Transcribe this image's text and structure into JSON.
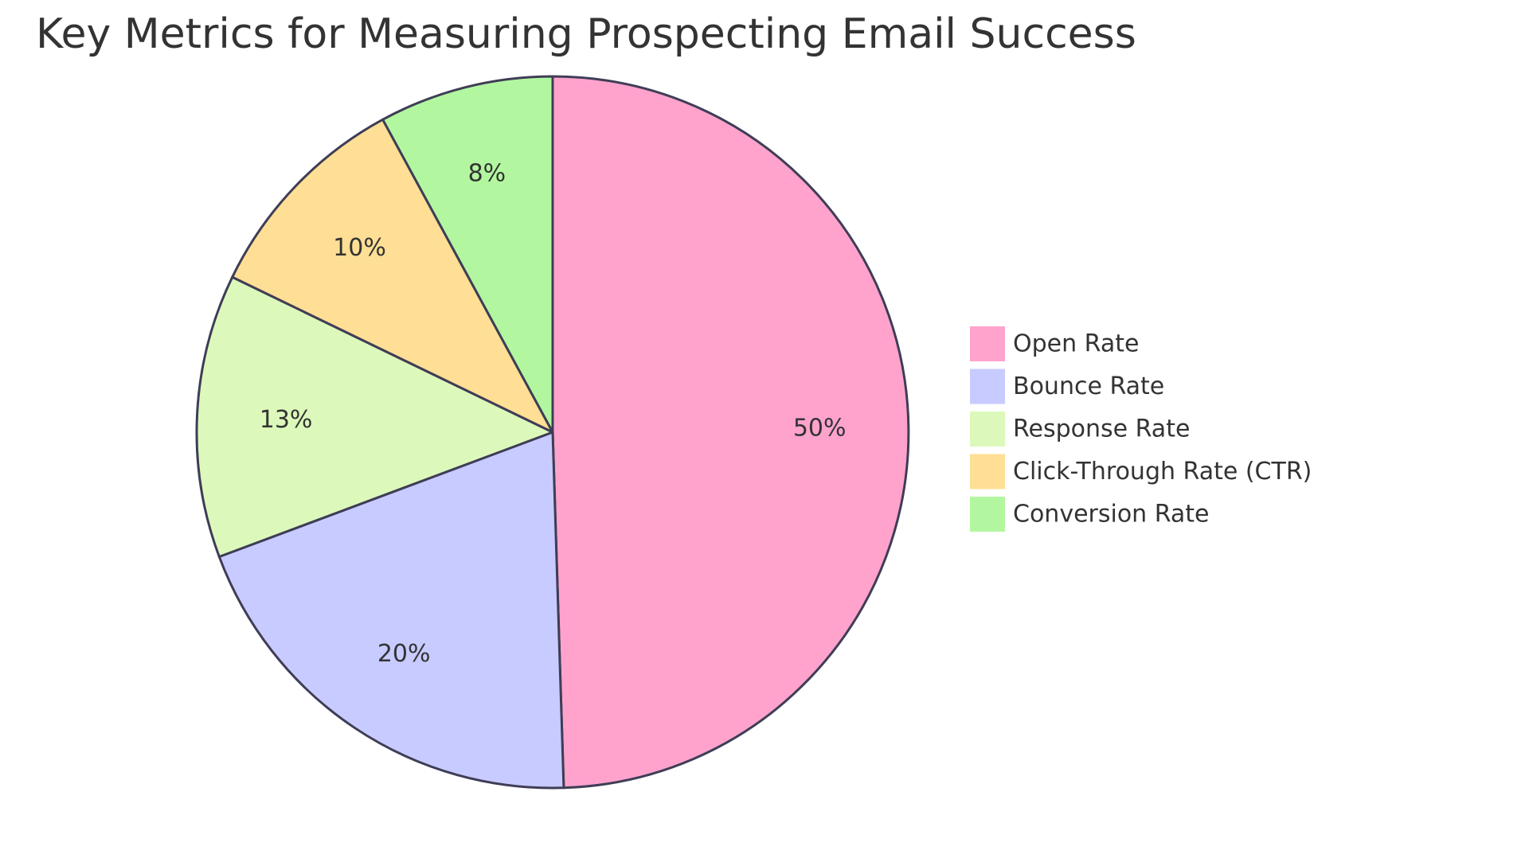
{
  "chart_data": {
    "type": "pie",
    "title": "Key Metrics for Measuring Prospecting Email Success",
    "categories": [
      "Open Rate",
      "Bounce Rate",
      "Response Rate",
      "Click-Through Rate (CTR)",
      "Conversion Rate"
    ],
    "values": [
      50,
      20,
      13,
      10,
      8
    ],
    "value_labels": [
      "50%",
      "20%",
      "13%",
      "10%",
      "8%"
    ],
    "colors": [
      "#FFA3CD",
      "#C8CBFF",
      "#DCF9BB",
      "#FFDF95",
      "#B2F7A0"
    ],
    "slice_border_color": "#3F3D56",
    "start_angle": "12 o'clock",
    "direction": "clockwise",
    "legend_position": "right"
  }
}
